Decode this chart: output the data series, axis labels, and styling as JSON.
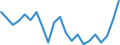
{
  "x": [
    0,
    1,
    2,
    3,
    4,
    5,
    6,
    7,
    8,
    9,
    10,
    11,
    12,
    13,
    14,
    15,
    16,
    17,
    18,
    19,
    20
  ],
  "y": [
    68,
    60,
    52,
    57,
    65,
    58,
    68,
    50,
    30,
    55,
    62,
    42,
    32,
    40,
    28,
    32,
    40,
    30,
    38,
    58,
    82
  ],
  "line_color": "#3a8fce",
  "linewidth": 1.5,
  "background_color": "#ffffff"
}
